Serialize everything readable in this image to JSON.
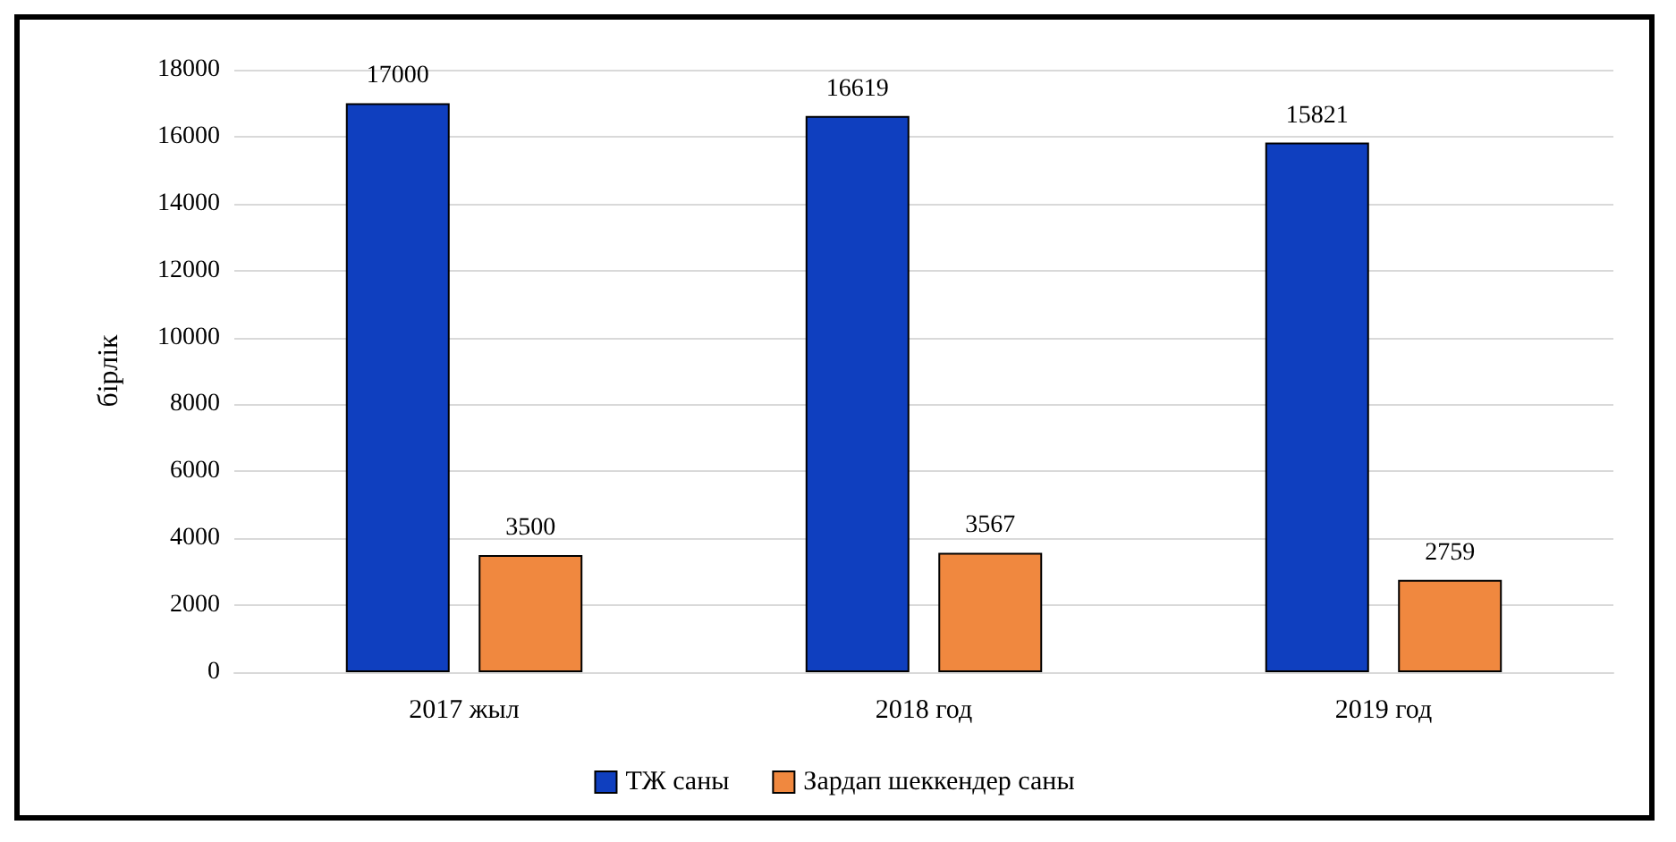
{
  "chart_data": {
    "type": "bar",
    "ylabel": "бірлік",
    "categories": [
      "2017 жыл",
      "2018 год",
      "2019 год"
    ],
    "series": [
      {
        "name": "ТЖ саны",
        "color": "#0f3fbf",
        "values": [
          17000,
          16619,
          15821
        ]
      },
      {
        "name": "Зардап шеккендер саны",
        "color": "#f0883f",
        "values": [
          3500,
          3567,
          2759
        ]
      }
    ],
    "ylim": [
      0,
      18000
    ],
    "yticks": [
      0,
      2000,
      4000,
      6000,
      8000,
      10000,
      12000,
      14000,
      16000,
      18000
    ],
    "grid": "y",
    "legend": "bottom",
    "data_labels": true
  }
}
